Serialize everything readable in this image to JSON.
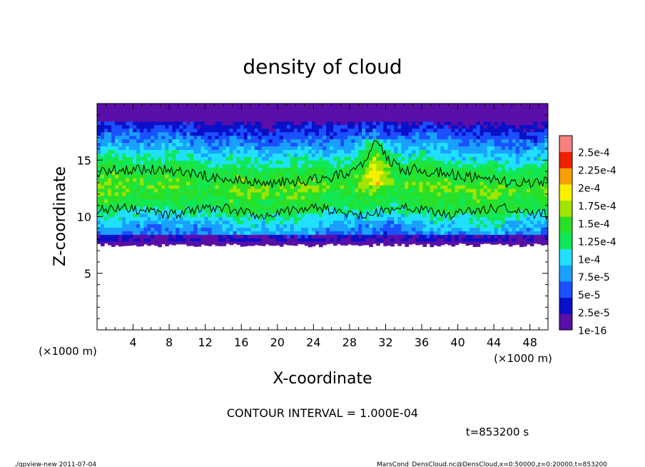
{
  "chart_data": {
    "type": "heatmap",
    "title": "density of cloud",
    "xlabel": "X-coordinate",
    "ylabel": "Z-coordinate",
    "x_unit_label": "(×1000 m)",
    "y_unit_label": "(×1000 m)",
    "xlim": [
      0,
      50
    ],
    "ylim": [
      0,
      20
    ],
    "x_ticks": [
      4,
      8,
      12,
      16,
      20,
      24,
      28,
      32,
      36,
      40,
      44,
      48
    ],
    "y_ticks": [
      5,
      10,
      15
    ],
    "colorbar": {
      "labels": [
        "1e-16",
        "2.5e-5",
        "5e-5",
        "7.5e-5",
        "1e-4",
        "1.25e-4",
        "1.5e-4",
        "1.75e-4",
        "2e-4",
        "2.25e-4",
        "2.5e-4"
      ],
      "colors": [
        "#5a0fa8",
        "#0a10c8",
        "#1a50ff",
        "#1aa0ff",
        "#20e0ff",
        "#10e858",
        "#28e028",
        "#a0e400",
        "#f8f000",
        "#f8a000",
        "#f02000",
        "#f88080"
      ]
    },
    "cloud_structure": {
      "cloud_base_z": 7.8,
      "cloud_top_z": 20,
      "core_z_range": [
        10.5,
        14.8
      ],
      "contour_level": 0.0001,
      "dense_updraft_x_range": [
        29,
        33
      ]
    },
    "contour_interval": "CONTOUR INTERVAL = 1.000E-04",
    "time_label": "t=853200 s"
  },
  "footer": {
    "left": "./gpview-new   2011-07-04",
    "right": "MarsCond_DensCloud.nc@DensCloud,x=0:50000,z=0:20000,t=853200"
  },
  "colors": {
    "frame": "#000000",
    "background": "#ffffff"
  }
}
